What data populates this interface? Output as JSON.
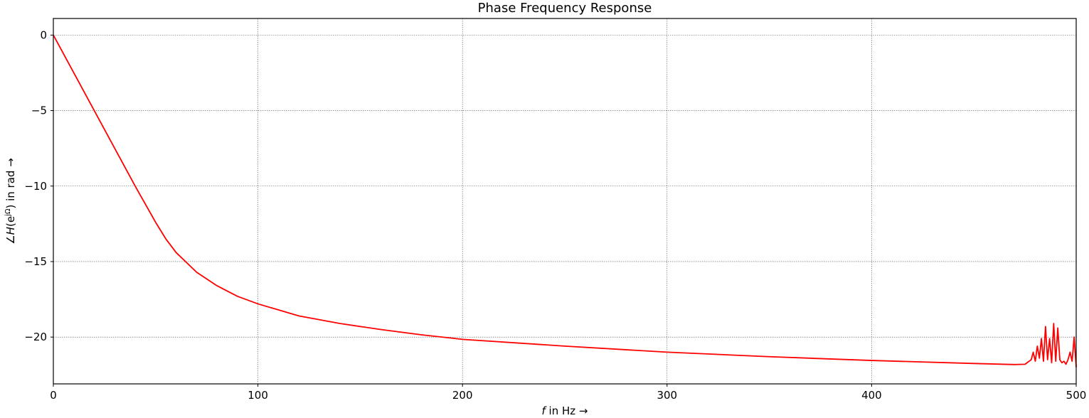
{
  "chart_data": {
    "type": "line",
    "title": "Phase Frequency Response",
    "xlabel": "f in Hz →",
    "ylabel": "∠H(e^jΩ) in rad →",
    "xlim": [
      0,
      500
    ],
    "ylim": [
      -23.1,
      1.1
    ],
    "xticks": [
      0,
      100,
      200,
      300,
      400,
      500
    ],
    "yticks": [
      0,
      -5,
      -10,
      -15,
      -20
    ],
    "grid": true,
    "series": [
      {
        "color": "#ff0000",
        "x": [
          0,
          10,
          20,
          30,
          40,
          50,
          55,
          60,
          70,
          80,
          90,
          100,
          120,
          140,
          160,
          180,
          200,
          250,
          300,
          350,
          400,
          450,
          470,
          475,
          478,
          479,
          480,
          481,
          482,
          483,
          484,
          485,
          486,
          487,
          488,
          489,
          490,
          491,
          492,
          493,
          494,
          495,
          496,
          497,
          498,
          499,
          500
        ],
        "y": [
          0,
          -2.5,
          -5.0,
          -7.5,
          -10.0,
          -12.4,
          -13.5,
          -14.4,
          -15.7,
          -16.6,
          -17.3,
          -17.8,
          -18.6,
          -19.1,
          -19.5,
          -19.85,
          -20.15,
          -20.6,
          -21.0,
          -21.3,
          -21.55,
          -21.75,
          -21.82,
          -21.8,
          -21.5,
          -21.0,
          -21.6,
          -20.6,
          -21.4,
          -20.1,
          -21.6,
          -19.3,
          -21.5,
          -20.1,
          -21.7,
          -19.1,
          -21.6,
          -19.4,
          -21.5,
          -21.7,
          -21.6,
          -21.8,
          -21.5,
          -21.0,
          -21.6,
          -20.0,
          -22.0
        ]
      }
    ]
  }
}
